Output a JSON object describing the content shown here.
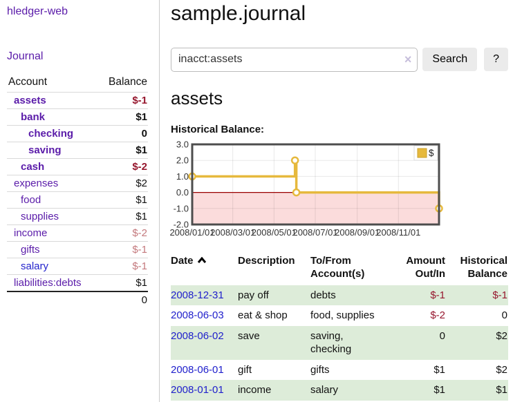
{
  "app": {
    "title": "hledger-web",
    "nav_journal": "Journal"
  },
  "colors": {
    "accent_purple": "#5a1ba9",
    "link_blue": "#2020cc",
    "negative_strong": "#96172e",
    "negative_muted": "#c4797d",
    "row_green": "#ddecd9",
    "chart_gold": "#e6b93d",
    "chart_negative_fill": "#fbdcdc",
    "chart_zero_line": "#990000"
  },
  "sidebar": {
    "columns": {
      "account": "Account",
      "balance": "Balance"
    },
    "accounts": [
      {
        "name": "assets",
        "balance": "$-1"
      },
      {
        "name": "bank",
        "balance": "$1"
      },
      {
        "name": "checking",
        "balance": "0"
      },
      {
        "name": "saving",
        "balance": "$1"
      },
      {
        "name": "cash",
        "balance": "$-2"
      },
      {
        "name": "expenses",
        "balance": "$2"
      },
      {
        "name": "food",
        "balance": "$1"
      },
      {
        "name": "supplies",
        "balance": "$1"
      },
      {
        "name": "income",
        "balance": "$-2"
      },
      {
        "name": "gifts",
        "balance": "$-1"
      },
      {
        "name": "salary",
        "balance": "$-1"
      },
      {
        "name": "liabilities:debts",
        "balance": "$1"
      }
    ],
    "total": "0"
  },
  "header": {
    "title": "sample.journal"
  },
  "search": {
    "value": "inacct:assets",
    "clear_icon": "×",
    "button_label": "Search",
    "help_label": "?"
  },
  "account_page": {
    "title": "assets",
    "chart_label": "Historical Balance:"
  },
  "chart_data": {
    "type": "line",
    "style": "step",
    "title": "Historical Balance:",
    "legend": {
      "label": "$",
      "position": "top-right"
    },
    "xlim": [
      "2008-01-01",
      "2008-12-31"
    ],
    "ylim": [
      -2,
      3
    ],
    "grid": true,
    "series": [
      {
        "name": "$",
        "points": [
          {
            "date": "2008-01-01",
            "value": 1
          },
          {
            "date": "2008-06-01",
            "value": 2
          },
          {
            "date": "2008-06-03",
            "value": 0
          },
          {
            "date": "2008-12-31",
            "value": -1
          }
        ]
      }
    ],
    "y_ticks": [
      {
        "value": 3,
        "label": "3.0"
      },
      {
        "value": 2,
        "label": "2.0"
      },
      {
        "value": 1,
        "label": "1.0"
      },
      {
        "value": 0,
        "label": "0.0"
      },
      {
        "value": -1,
        "label": "-1.0"
      },
      {
        "value": -2,
        "label": "-2.0"
      }
    ],
    "x_ticks": [
      {
        "date": "2008-01-01",
        "label": "2008/01/01"
      },
      {
        "date": "2008-03-01",
        "label": "2008/03/01"
      },
      {
        "date": "2008-05-01",
        "label": "2008/05/01"
      },
      {
        "date": "2008-07-01",
        "label": "2008/07/01"
      },
      {
        "date": "2008-09-01",
        "label": "2008/09/01"
      },
      {
        "date": "2008-11-01",
        "label": "2008/11/01"
      }
    ]
  },
  "register": {
    "columns": {
      "date": "Date",
      "description": "Description",
      "tofrom_l1": "To/From",
      "tofrom_l2": "Account(s)",
      "amount_l1": "Amount",
      "amount_l2": "Out/In",
      "balance_l1": "Historical",
      "balance_l2": "Balance"
    },
    "rows": [
      {
        "date": "2008-12-31",
        "description": "pay off",
        "accounts": "debts",
        "amount": "$-1",
        "balance": "$-1"
      },
      {
        "date": "2008-06-03",
        "description": "eat & shop",
        "accounts": "food, supplies",
        "amount": "$-2",
        "balance": "0"
      },
      {
        "date": "2008-06-02",
        "description": "save",
        "accounts": "saving, checking",
        "amount": "0",
        "balance": "$2"
      },
      {
        "date": "2008-06-01",
        "description": "gift",
        "accounts": "gifts",
        "amount": "$1",
        "balance": "$2"
      },
      {
        "date": "2008-01-01",
        "description": "income",
        "accounts": "salary",
        "amount": "$1",
        "balance": "$1"
      }
    ]
  }
}
